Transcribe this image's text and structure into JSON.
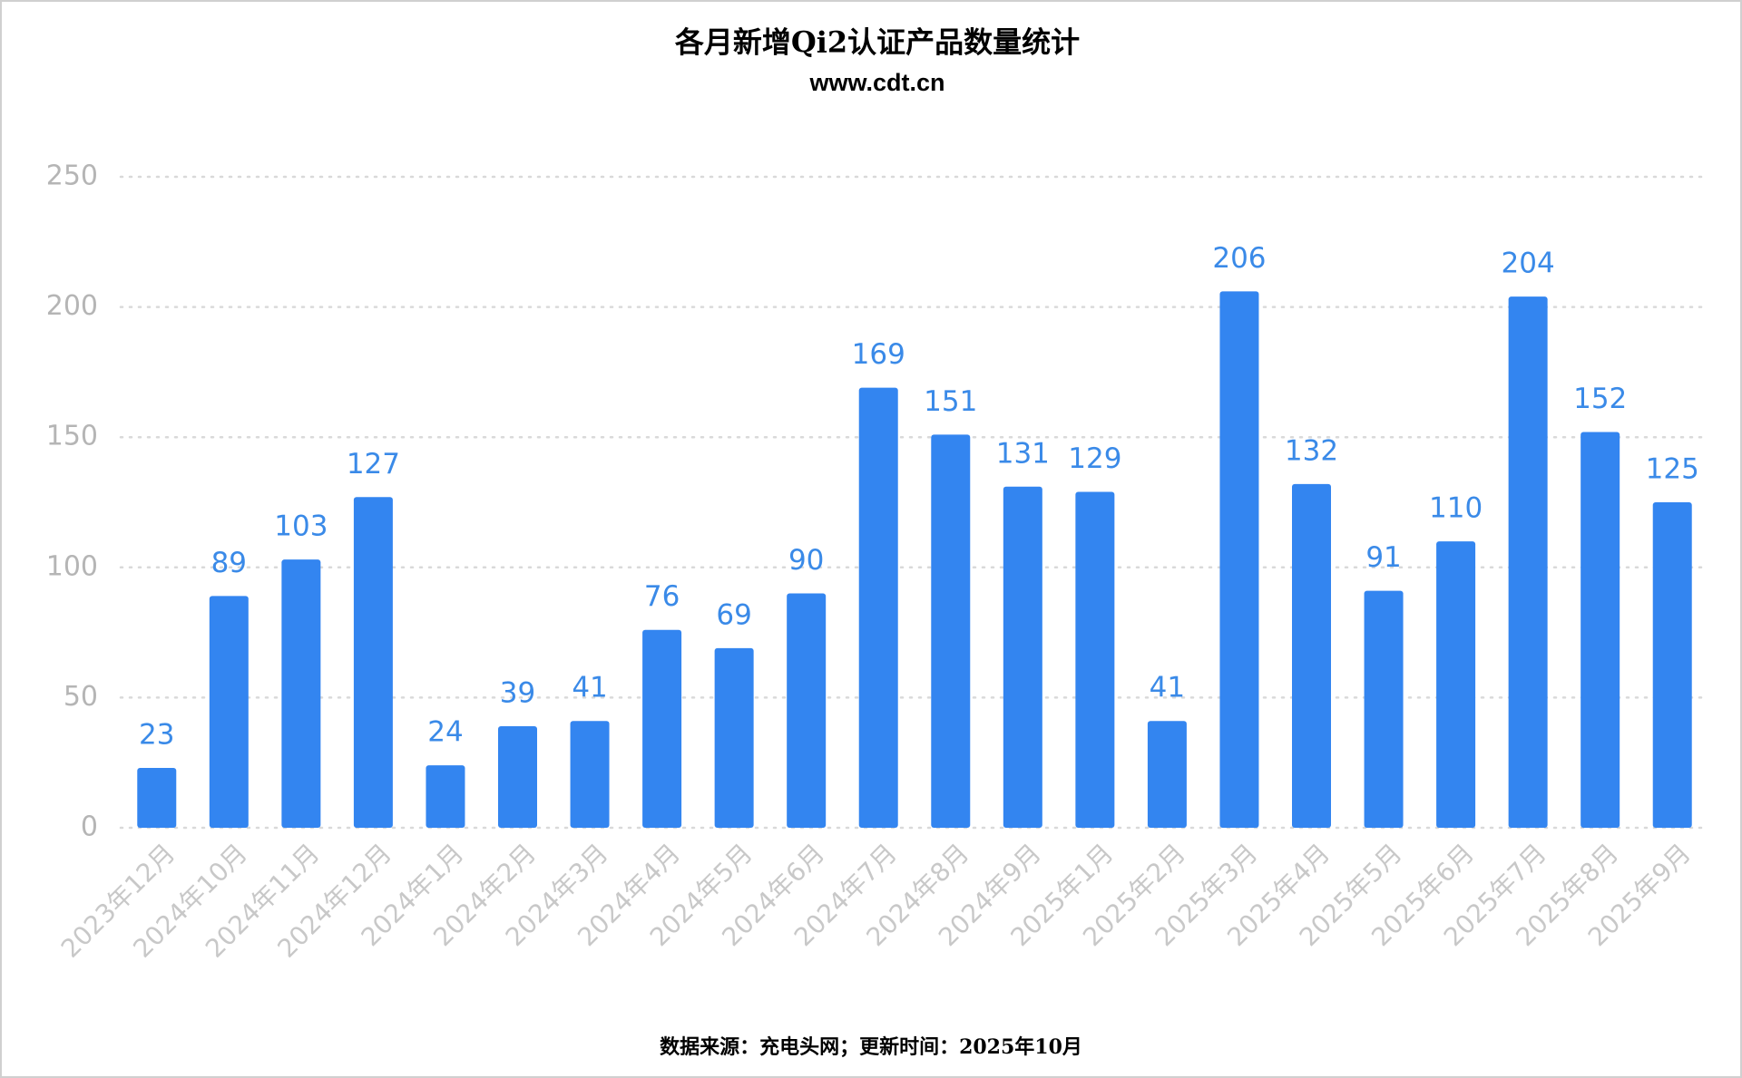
{
  "chart_data": {
    "type": "bar",
    "title": "各月新增Qi2认证产品数量统计",
    "subtitle": "www.cdt.cn",
    "source": "数据来源：充电头网；更新时间：2025年10月",
    "categories": [
      "2023年12月",
      "2024年10月",
      "2024年11月",
      "2024年12月",
      "2024年1月",
      "2024年2月",
      "2024年3月",
      "2024年4月",
      "2024年5月",
      "2024年6月",
      "2024年7月",
      "2024年8月",
      "2024年9月",
      "2025年1月",
      "2025年2月",
      "2025年3月",
      "2025年4月",
      "2025年5月",
      "2025年6月",
      "2025年7月",
      "2025年8月",
      "2025年9月"
    ],
    "values": [
      23,
      89,
      103,
      127,
      24,
      39,
      41,
      76,
      69,
      90,
      169,
      151,
      131,
      129,
      41,
      206,
      132,
      91,
      110,
      204,
      152,
      125
    ],
    "color": "#3385f0",
    "ylim": [
      0,
      250
    ],
    "yticks": [
      0,
      50,
      100,
      150,
      200,
      250
    ],
    "grid": true
  }
}
